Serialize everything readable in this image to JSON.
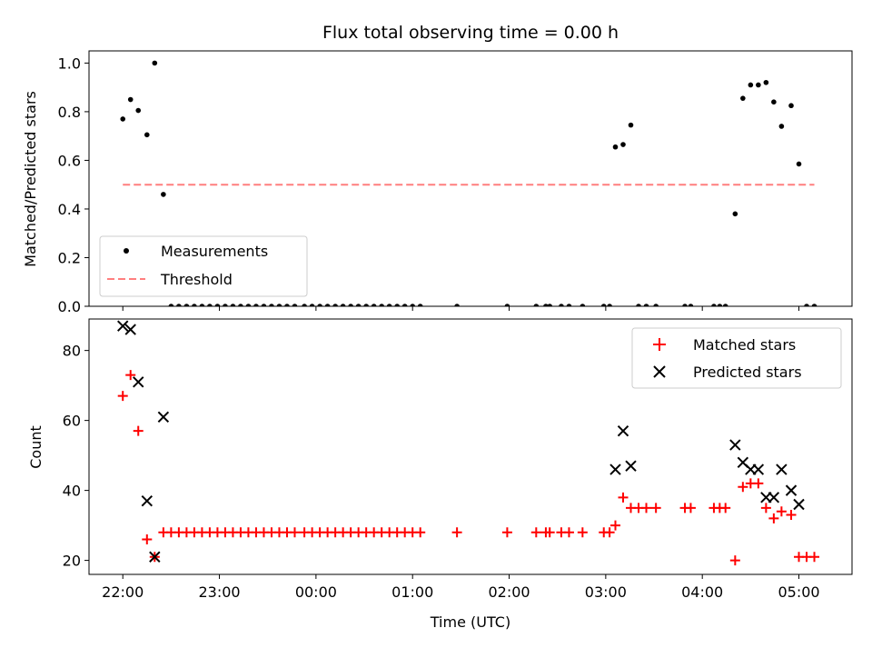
{
  "chart_data": [
    {
      "type": "scatter",
      "title": "Flux total observing time = 0.00 h",
      "ylabel": "Matched/Predicted stars",
      "xlabel": "",
      "xlim": [
        -0.35,
        7.55
      ],
      "ylim": [
        0.0,
        1.05
      ],
      "x_unit": "hours after 22:00 UTC",
      "xticks": [
        0,
        1,
        2,
        3,
        4,
        5,
        6,
        7
      ],
      "xtick_labels": [
        "22:00",
        "23:00",
        "00:00",
        "01:00",
        "02:00",
        "03:00",
        "04:00",
        "05:00"
      ],
      "yticks": [
        0.0,
        0.2,
        0.4,
        0.6,
        0.8,
        1.0
      ],
      "ytick_labels": [
        "0.0",
        "0.2",
        "0.4",
        "0.6",
        "0.8",
        "1.0"
      ],
      "legend": {
        "position": "lower-left",
        "entries": [
          "Measurements",
          "Threshold"
        ]
      },
      "series": [
        {
          "name": "Measurements",
          "marker": "dot",
          "color": "#000000",
          "x": [
            0.0,
            0.08,
            0.16,
            0.25,
            0.33,
            0.42,
            0.5,
            0.58,
            0.66,
            0.74,
            0.82,
            0.9,
            0.98,
            1.06,
            1.14,
            1.22,
            1.3,
            1.38,
            1.46,
            1.54,
            1.62,
            1.7,
            1.78,
            1.88,
            1.96,
            2.04,
            2.12,
            2.2,
            2.28,
            2.36,
            2.44,
            2.52,
            2.6,
            2.68,
            2.76,
            2.84,
            2.92,
            3.0,
            3.08,
            3.46,
            3.98,
            4.28,
            4.38,
            4.42,
            4.54,
            4.62,
            4.76,
            4.98,
            5.04,
            5.1,
            5.18,
            5.26,
            5.34,
            5.42,
            5.52,
            5.82,
            5.88,
            6.12,
            6.18,
            6.24,
            6.34,
            6.42,
            6.5,
            6.58,
            6.66,
            6.74,
            6.82,
            6.92,
            7.0,
            7.08,
            7.16
          ],
          "y": [
            0.77,
            0.85,
            0.805,
            0.705,
            1.0,
            0.46,
            0.0,
            0.0,
            0.0,
            0.0,
            0.0,
            0.0,
            0.0,
            0.0,
            0.0,
            0.0,
            0.0,
            0.0,
            0.0,
            0.0,
            0.0,
            0.0,
            0.0,
            0.0,
            0.0,
            0.0,
            0.0,
            0.0,
            0.0,
            0.0,
            0.0,
            0.0,
            0.0,
            0.0,
            0.0,
            0.0,
            0.0,
            0.0,
            0.0,
            0.0,
            0.0,
            0.0,
            0.0,
            0.0,
            0.0,
            0.0,
            0.0,
            0.0,
            0.0,
            0.655,
            0.665,
            0.745,
            0.0,
            0.0,
            0.0,
            0.0,
            0.0,
            0.0,
            0.0,
            0.0,
            0.38,
            0.855,
            0.91,
            0.91,
            0.92,
            0.84,
            0.74,
            0.825,
            0.585,
            0.0,
            0.0
          ]
        },
        {
          "name": "Threshold",
          "marker": "dashed-line",
          "color": "#ff7f7f",
          "x": [
            0.0,
            7.16
          ],
          "y": [
            0.5,
            0.5
          ]
        }
      ]
    },
    {
      "type": "scatter",
      "title": "",
      "ylabel": "Count",
      "xlabel": "Time (UTC)",
      "xlim": [
        -0.35,
        7.55
      ],
      "ylim": [
        16,
        89
      ],
      "x_unit": "hours after 22:00 UTC",
      "xticks": [
        0,
        1,
        2,
        3,
        4,
        5,
        6,
        7
      ],
      "xtick_labels": [
        "22:00",
        "23:00",
        "00:00",
        "01:00",
        "02:00",
        "03:00",
        "04:00",
        "05:00"
      ],
      "yticks": [
        20,
        40,
        60,
        80
      ],
      "ytick_labels": [
        "20",
        "40",
        "60",
        "80"
      ],
      "legend": {
        "position": "upper-right",
        "entries": [
          "Matched stars",
          "Predicted stars"
        ]
      },
      "series": [
        {
          "name": "Matched stars",
          "marker": "plus",
          "color": "#ff0000",
          "x": [
            0.0,
            0.08,
            0.16,
            0.25,
            0.33,
            0.42,
            0.5,
            0.58,
            0.66,
            0.74,
            0.82,
            0.9,
            0.98,
            1.06,
            1.14,
            1.22,
            1.3,
            1.38,
            1.46,
            1.54,
            1.62,
            1.7,
            1.78,
            1.88,
            1.96,
            2.04,
            2.12,
            2.2,
            2.28,
            2.36,
            2.44,
            2.52,
            2.6,
            2.68,
            2.76,
            2.84,
            2.92,
            3.0,
            3.08,
            3.46,
            3.98,
            4.28,
            4.38,
            4.42,
            4.54,
            4.62,
            4.76,
            4.98,
            5.04,
            5.1,
            5.18,
            5.26,
            5.34,
            5.42,
            5.52,
            5.82,
            5.88,
            6.12,
            6.18,
            6.24,
            6.34,
            6.42,
            6.5,
            6.58,
            6.66,
            6.74,
            6.82,
            6.92,
            7.0,
            7.08,
            7.16
          ],
          "y": [
            67,
            73,
            57,
            26,
            21,
            28,
            28,
            28,
            28,
            28,
            28,
            28,
            28,
            28,
            28,
            28,
            28,
            28,
            28,
            28,
            28,
            28,
            28,
            28,
            28,
            28,
            28,
            28,
            28,
            28,
            28,
            28,
            28,
            28,
            28,
            28,
            28,
            28,
            28,
            28,
            28,
            28,
            28,
            28,
            28,
            28,
            28,
            28,
            28,
            30,
            38,
            35,
            35,
            35,
            35,
            35,
            35,
            35,
            35,
            35,
            20,
            41,
            42,
            42,
            35,
            32,
            34,
            33,
            21,
            21,
            21
          ]
        },
        {
          "name": "Predicted stars",
          "marker": "x",
          "color": "#000000",
          "x": [
            0.0,
            0.08,
            0.16,
            0.25,
            0.33,
            0.42,
            5.1,
            5.18,
            5.26,
            6.34,
            6.42,
            6.5,
            6.58,
            6.66,
            6.74,
            6.82,
            6.92,
            7.0
          ],
          "y": [
            87,
            86,
            71,
            37,
            21,
            61,
            46,
            57,
            47,
            53,
            48,
            46,
            46,
            38,
            38,
            46,
            40,
            36
          ]
        }
      ]
    }
  ]
}
